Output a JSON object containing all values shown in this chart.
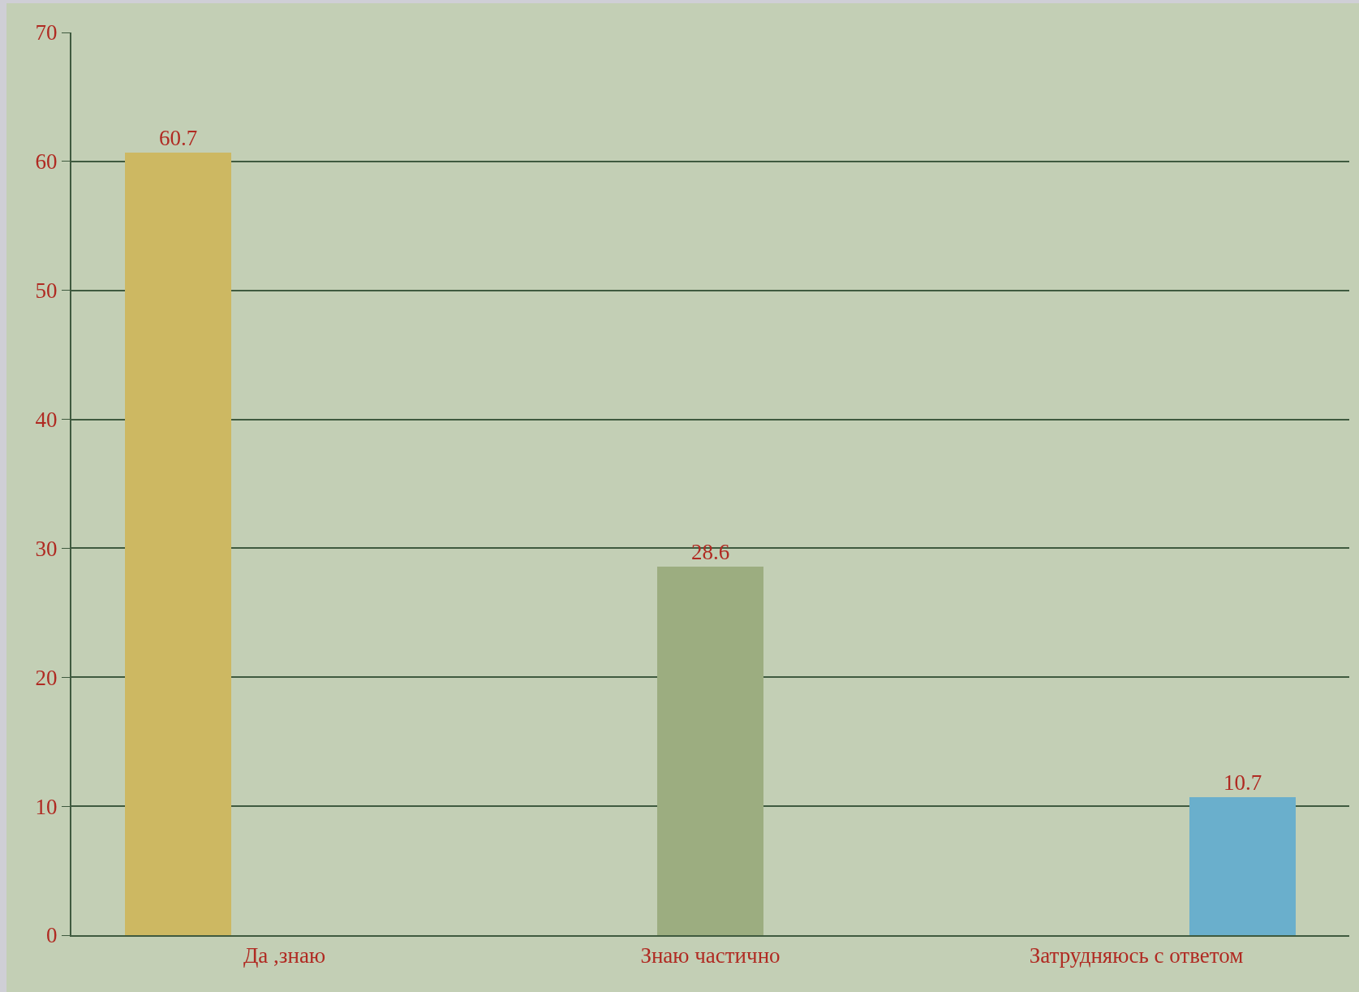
{
  "chart_data": {
    "type": "bar",
    "categories": [
      "Да ,знаю",
      "Знаю частично",
      "Затрудняюсь с ответом"
    ],
    "values": [
      60.7,
      28.6,
      10.7
    ],
    "colors": [
      "#cdb862",
      "#9cad80",
      "#6aafcc"
    ],
    "ylim": [
      0,
      70
    ],
    "yticks": [
      0,
      10,
      20,
      30,
      40,
      50,
      60,
      70
    ],
    "grid": "y",
    "data_labels": true
  }
}
